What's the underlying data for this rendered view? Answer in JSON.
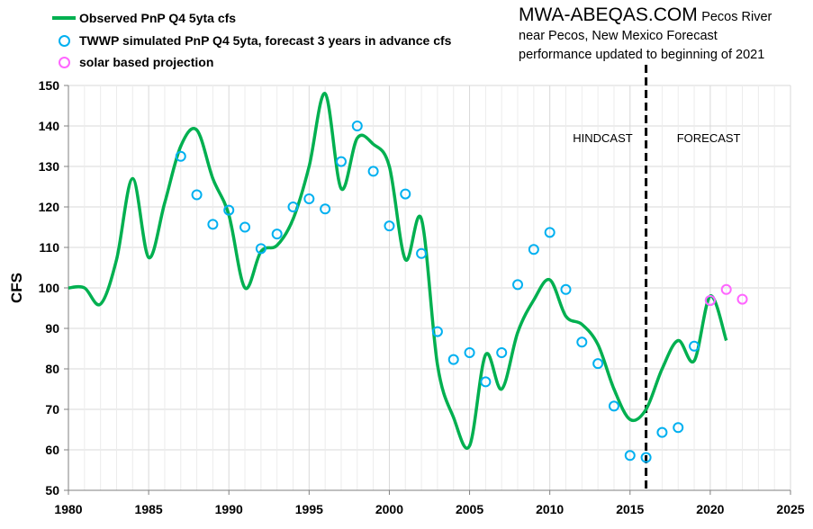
{
  "title_block": {
    "site": "MWA-ABEQAS.COM",
    "line1_rest": "Pecos River",
    "line2": "near Pecos, New Mexico  Forecast",
    "line3": "performance updated to beginning of 2021"
  },
  "legend": [
    {
      "label": "Observed PnP Q4 5yta cfs",
      "kind": "line",
      "color": "#00b050"
    },
    {
      "label": "TWWP simulated PnP Q4 5yta, forecast 3 years in advance cfs",
      "kind": "circle",
      "color": "#00b0f0"
    },
    {
      "label": "solar based projection",
      "kind": "circle",
      "color": "#ff66ff"
    }
  ],
  "chart_data": {
    "type": "line",
    "ylabel": "CFS",
    "xlabel": "",
    "xlim": [
      1980,
      2025
    ],
    "ylim": [
      50,
      150
    ],
    "x_ticks": [
      1980,
      1985,
      1990,
      1995,
      2000,
      2005,
      2010,
      2015,
      2020,
      2025
    ],
    "y_ticks": [
      50,
      60,
      70,
      80,
      90,
      100,
      110,
      120,
      130,
      140,
      150
    ],
    "grid": true,
    "legend_position": "top-left",
    "series": [
      {
        "name": "Observed PnP Q4 5yta cfs",
        "type": "line",
        "color": "#00b050",
        "x": [
          1980,
          1981,
          1982,
          1983,
          1984,
          1985,
          1986,
          1987,
          1988,
          1989,
          1990,
          1991,
          1992,
          1993,
          1994,
          1995,
          1996,
          1997,
          1998,
          1999,
          2000,
          2001,
          2002,
          2003,
          2004,
          2005,
          2006,
          2007,
          2008,
          2009,
          2010,
          2011,
          2012,
          2013,
          2014,
          2015,
          2016,
          2017,
          2018,
          2019,
          2020,
          2021
        ],
        "y": [
          100,
          100,
          96,
          107,
          127,
          107.5,
          121,
          135,
          139,
          127,
          118,
          100,
          109,
          110.5,
          117,
          130,
          148,
          124.5,
          137,
          135.5,
          130,
          107,
          117,
          81,
          68,
          61,
          83.5,
          75,
          89,
          97,
          102,
          93,
          91,
          86,
          75,
          67.5,
          70,
          80,
          87,
          82,
          98,
          87
        ]
      },
      {
        "name": "TWWP simulated PnP Q4 5yta, forecast 3 years in advance cfs",
        "type": "scatter",
        "color": "#00b0f0",
        "x": [
          1987,
          1988,
          1989,
          1990,
          1991,
          1992,
          1993,
          1994,
          1995,
          1996,
          1997,
          1998,
          1999,
          2000,
          2001,
          2002,
          2003,
          2004,
          2005,
          2006,
          2007,
          2008,
          2009,
          2010,
          2011,
          2012,
          2013,
          2014,
          2015,
          2016,
          2017,
          2018,
          2019,
          2020
        ],
        "y": [
          132.5,
          123,
          115.7,
          119.2,
          115,
          109.7,
          113.3,
          120,
          122,
          119.5,
          131.2,
          140,
          128.8,
          115.3,
          123.2,
          108.5,
          89.2,
          82.3,
          84,
          76.8,
          84,
          100.8,
          109.5,
          113.7,
          99.6,
          86.6,
          81.3,
          70.8,
          58.6,
          58.1,
          64.3,
          65.5,
          85.6,
          96.9
        ]
      },
      {
        "name": "solar based projection",
        "type": "scatter",
        "color": "#ff66ff",
        "x": [
          2020,
          2021,
          2022
        ],
        "y": [
          96.9,
          99.6,
          97.2
        ]
      }
    ],
    "annotations": [
      {
        "text": "HINDCAST",
        "x": 2013.3,
        "y": 136
      },
      {
        "text": "FORECAST",
        "x": 2019.9,
        "y": 136
      }
    ],
    "vertical_line": {
      "x": 2016,
      "style": "dashed",
      "color": "#000000"
    }
  }
}
